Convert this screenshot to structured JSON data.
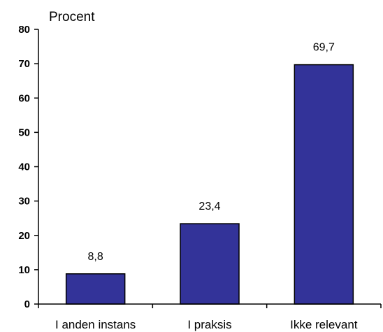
{
  "chart_data": {
    "type": "bar",
    "title": "",
    "xlabel": "",
    "ylabel": "Procent",
    "categories": [
      "I anden instans",
      "I praksis",
      "Ikke relevant"
    ],
    "values": [
      8.8,
      23.4,
      69.7
    ],
    "data_labels": [
      "8,8",
      "23,4",
      "69,7"
    ],
    "ylim": [
      0,
      80
    ],
    "yticks": [
      0,
      10,
      20,
      30,
      40,
      50,
      60,
      70,
      80
    ],
    "grid": false,
    "legend": "none",
    "bar_color": "#333399"
  }
}
